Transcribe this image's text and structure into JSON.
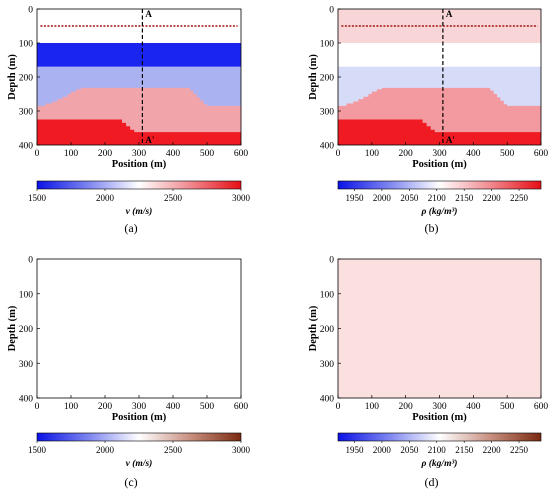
{
  "figure": {
    "panels": [
      {
        "id": "a",
        "caption": "(a)",
        "xlabel": "Position (m)",
        "ylabel": "Depth (m)",
        "x_ticks": [
          "0",
          "100",
          "200",
          "300",
          "400",
          "500",
          "600"
        ],
        "y_ticks": [
          "0",
          "100",
          "200",
          "300",
          "400"
        ],
        "profile_labels": [
          "A",
          "A'"
        ],
        "colorbar": {
          "label": "v (m/s)",
          "tick_labels": [
            "1500",
            "2000",
            "2500",
            "3000"
          ],
          "tick_values": [
            1500,
            2000,
            2500,
            3000
          ],
          "range": [
            1500,
            3000
          ],
          "colormap": [
            "#0b12e6",
            "#7c84f0",
            "#ffffff",
            "#f08a90",
            "#e60e16"
          ]
        },
        "layers": [
          {
            "name": "layer-1",
            "fill": "#ffffff"
          },
          {
            "name": "layer-2",
            "fill": "#1a26f0"
          },
          {
            "name": "layer-3",
            "fill": "#aab2f2"
          },
          {
            "name": "layer-4",
            "fill": "#f2a4ab"
          },
          {
            "name": "layer-5",
            "fill": "#ef1a22"
          }
        ]
      },
      {
        "id": "b",
        "caption": "(b)",
        "xlabel": "Position (m)",
        "ylabel": "Depth (m)",
        "x_ticks": [
          "0",
          "100",
          "200",
          "300",
          "400",
          "500",
          "600"
        ],
        "y_ticks": [
          "0",
          "100",
          "200",
          "300",
          "400"
        ],
        "profile_labels": [
          "A",
          "A'"
        ],
        "colorbar": {
          "label": "ρ (kg/m³)",
          "tick_labels": [
            "1950",
            "2000",
            "2050",
            "2100",
            "2150",
            "2200",
            "2250"
          ],
          "tick_values": [
            1950,
            2000,
            2050,
            2100,
            2150,
            2200,
            2250
          ],
          "range": [
            1920,
            2290
          ],
          "colormap": [
            "#0b12e6",
            "#7c84f0",
            "#ffffff",
            "#f08a90",
            "#e60e16"
          ]
        },
        "layers": [
          {
            "name": "layer-1",
            "fill": "#f8d6d8"
          },
          {
            "name": "layer-2",
            "fill": "#ffffff"
          },
          {
            "name": "layer-3",
            "fill": "#d6dbf8"
          },
          {
            "name": "layer-4",
            "fill": "#f29a9f"
          },
          {
            "name": "layer-5",
            "fill": "#ef1a22"
          }
        ]
      },
      {
        "id": "c",
        "caption": "(c)",
        "xlabel": "Position (m)",
        "ylabel": "Depth (m)",
        "x_ticks": [
          "0",
          "100",
          "200",
          "300",
          "400",
          "500",
          "600"
        ],
        "y_ticks": [
          "0",
          "100",
          "200",
          "300",
          "400"
        ],
        "fill": "#ffffff",
        "colorbar": {
          "label": "v (m/s)",
          "tick_labels": [
            "1500",
            "2000",
            "2500",
            "3000"
          ],
          "tick_values": [
            1500,
            2000,
            2500,
            3000
          ],
          "range": [
            1500,
            3000
          ],
          "colormap": [
            "#0b12e6",
            "#7c84f0",
            "#ffffff",
            "#c89080",
            "#7a2a10"
          ]
        }
      },
      {
        "id": "d",
        "caption": "(d)",
        "xlabel": "Position (m)",
        "ylabel": "Depth (m)",
        "x_ticks": [
          "0",
          "100",
          "200",
          "300",
          "400",
          "500",
          "600"
        ],
        "y_ticks": [
          "0",
          "100",
          "200",
          "300",
          "400"
        ],
        "fill": "#fbe0e0",
        "colorbar": {
          "label": "ρ (kg/m³)",
          "tick_labels": [
            "1950",
            "2000",
            "2050",
            "2100",
            "2150",
            "2200",
            "2250"
          ],
          "tick_values": [
            1950,
            2000,
            2050,
            2100,
            2150,
            2200,
            2250
          ],
          "range": [
            1920,
            2290
          ],
          "colormap": [
            "#0b12e6",
            "#7c84f0",
            "#ffffff",
            "#c89080",
            "#7a2a10"
          ]
        }
      }
    ]
  }
}
